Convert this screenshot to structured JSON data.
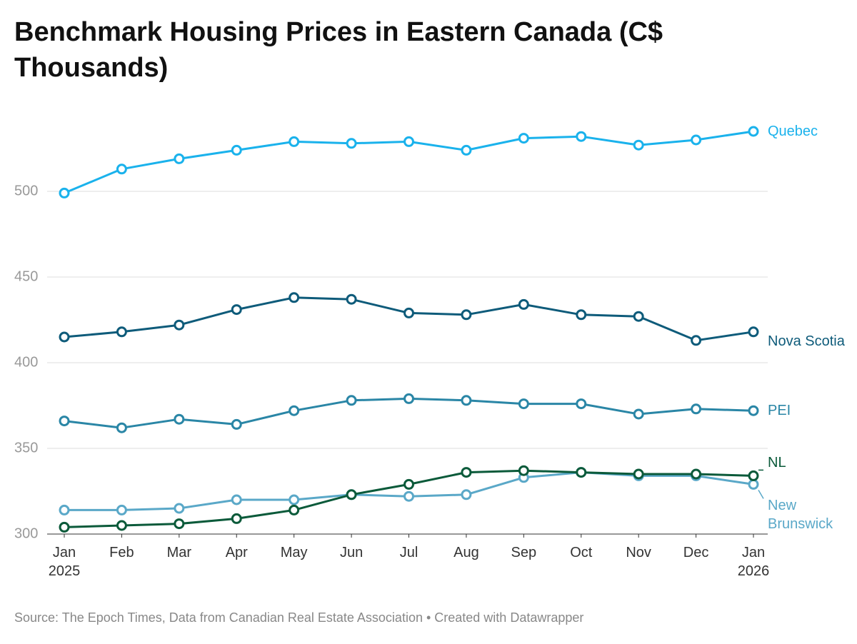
{
  "chart_data": {
    "type": "line",
    "title": "Benchmark Housing Prices in Eastern Canada (C$ Thousands)",
    "source": "Source: The Epoch Times, Data from Canadian Real Estate Association • Created with Datawrapper",
    "categories": [
      "Jan 2025",
      "Feb",
      "Mar",
      "Apr",
      "May",
      "Jun",
      "Jul",
      "Aug",
      "Sep",
      "Oct",
      "Nov",
      "Dec",
      "Jan 2026"
    ],
    "ylim": [
      300,
      540
    ],
    "yticks": [
      300,
      350,
      400,
      450,
      500
    ],
    "grid": true,
    "series": [
      {
        "name": "Quebec",
        "color": "#1ab2ec",
        "values": [
          499,
          513,
          519,
          524,
          529,
          528,
          529,
          524,
          531,
          532,
          527,
          530,
          535
        ]
      },
      {
        "name": "Nova Scotia",
        "color": "#0e5b7a",
        "values": [
          415,
          418,
          422,
          431,
          438,
          437,
          429,
          428,
          434,
          428,
          427,
          413,
          418
        ]
      },
      {
        "name": "PEI",
        "color": "#2a86a6",
        "values": [
          366,
          362,
          367,
          364,
          372,
          378,
          379,
          378,
          376,
          376,
          370,
          373,
          372
        ]
      },
      {
        "name": "NL",
        "color": "#0b5a3a",
        "values": [
          304,
          305,
          306,
          309,
          314,
          323,
          329,
          336,
          337,
          336,
          335,
          335,
          334
        ]
      },
      {
        "name": "New Brunswick",
        "color": "#5aa8c8",
        "values": [
          314,
          314,
          315,
          320,
          320,
          323,
          322,
          323,
          333,
          336,
          334,
          334,
          329
        ]
      }
    ]
  }
}
